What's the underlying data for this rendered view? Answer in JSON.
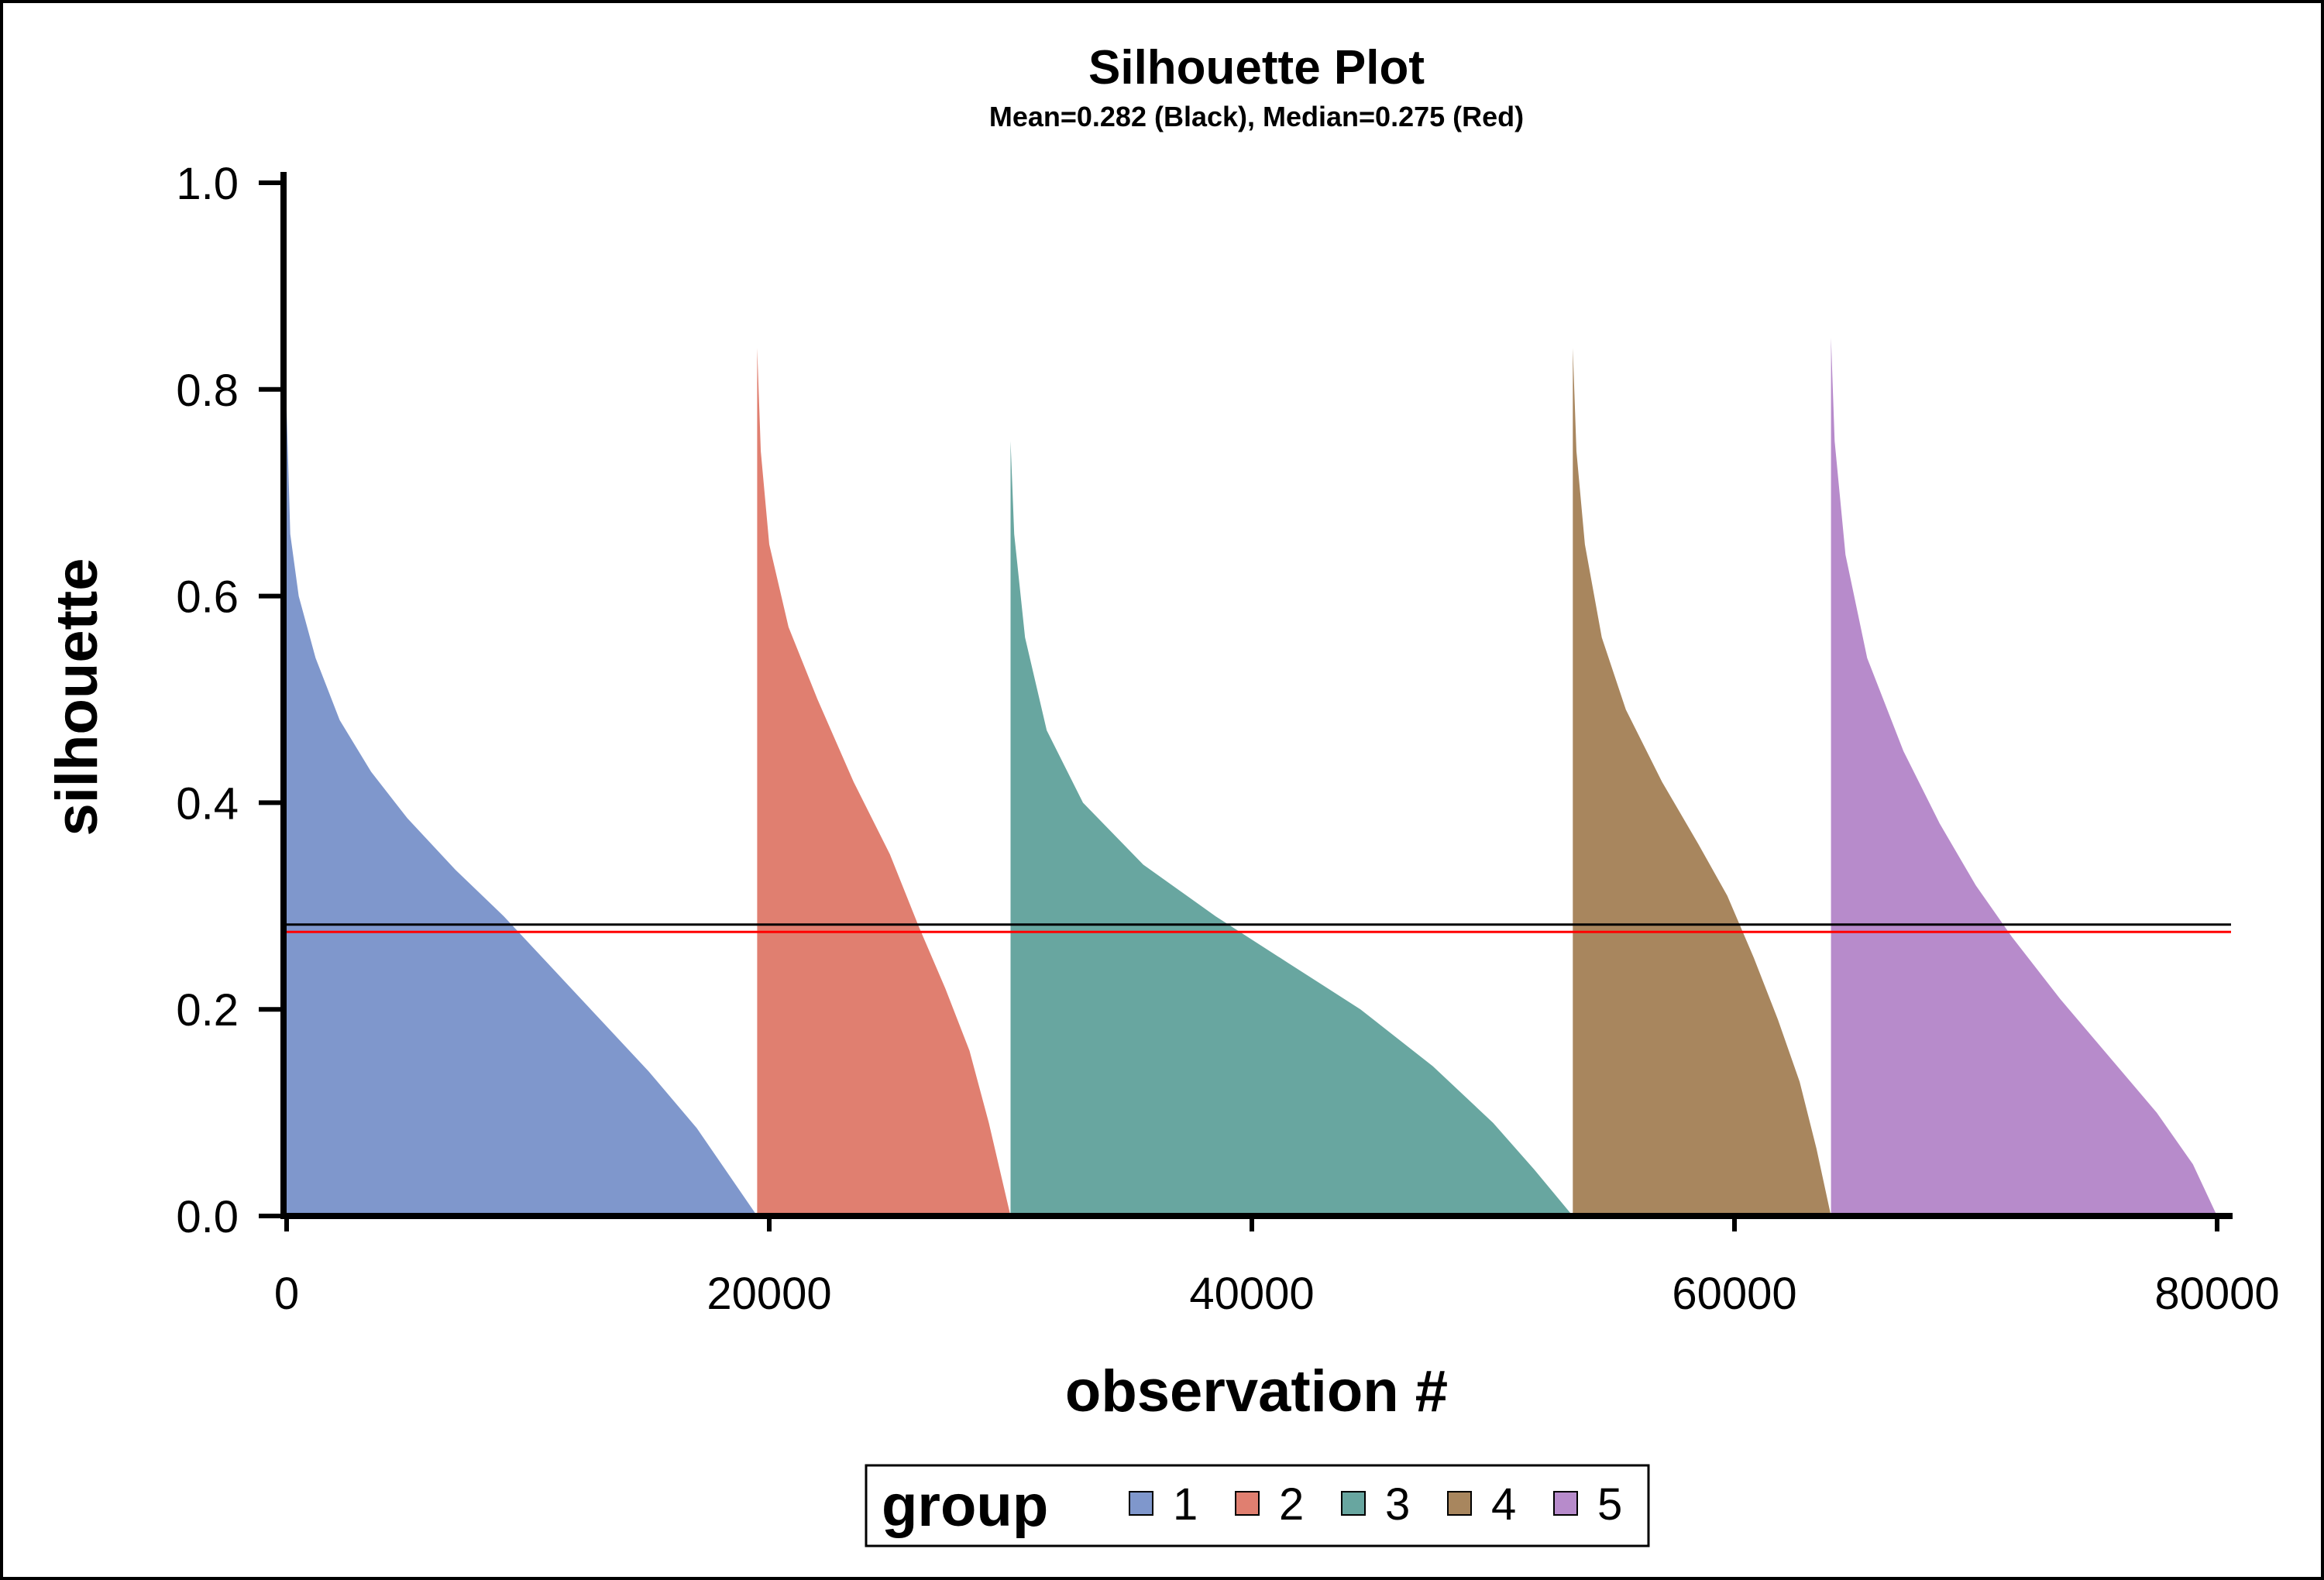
{
  "chart_data": {
    "type": "area",
    "title": "Silhouette Plot",
    "subtitle": "Mean=0.282 (Black), Median=0.275 (Red)",
    "xlabel": "observation #",
    "ylabel": "silhouette",
    "xlim": [
      0,
      80000
    ],
    "ylim": [
      0,
      1.0
    ],
    "x_ticks": [
      0,
      20000,
      40000,
      60000,
      80000
    ],
    "x_tick_labels": [
      "0",
      "20000",
      "40000",
      "60000",
      "80000"
    ],
    "y_ticks": [
      0.0,
      0.2,
      0.4,
      0.6,
      0.8,
      1.0
    ],
    "y_tick_labels": [
      "0.0",
      "0.2",
      "0.4",
      "0.6",
      "0.8",
      "1.0"
    ],
    "grid": false,
    "legend": {
      "title": "group",
      "placement": "bottom",
      "entries": [
        "1",
        "2",
        "3",
        "4",
        "5"
      ]
    },
    "reference_lines": [
      {
        "label": "Mean",
        "value": 0.282,
        "color": "#000000"
      },
      {
        "label": "Median",
        "value": 0.275,
        "color": "#ff0000"
      }
    ],
    "series": [
      {
        "name": "1",
        "color": "#7f97cc",
        "x_start": 0,
        "x_end": 19500,
        "points": [
          [
            0,
            0.78
          ],
          [
            150,
            0.66
          ],
          [
            500,
            0.6
          ],
          [
            1200,
            0.54
          ],
          [
            2200,
            0.48
          ],
          [
            3500,
            0.43
          ],
          [
            5000,
            0.385
          ],
          [
            7000,
            0.335
          ],
          [
            9000,
            0.29
          ],
          [
            11000,
            0.24
          ],
          [
            13000,
            0.19
          ],
          [
            15000,
            0.14
          ],
          [
            17000,
            0.085
          ],
          [
            19500,
            0.0
          ]
        ]
      },
      {
        "name": "2",
        "color": "#e07f70",
        "x_start": 19500,
        "x_end": 30000,
        "points": [
          [
            19500,
            0.84
          ],
          [
            19650,
            0.74
          ],
          [
            20000,
            0.65
          ],
          [
            20800,
            0.57
          ],
          [
            22000,
            0.5
          ],
          [
            23500,
            0.42
          ],
          [
            25000,
            0.35
          ],
          [
            26200,
            0.28
          ],
          [
            27300,
            0.22
          ],
          [
            28300,
            0.16
          ],
          [
            29100,
            0.09
          ],
          [
            30000,
            0.0
          ]
        ]
      },
      {
        "name": "3",
        "color": "#68a6a0",
        "x_start": 30000,
        "x_end": 53300,
        "points": [
          [
            30000,
            0.75
          ],
          [
            30150,
            0.66
          ],
          [
            30600,
            0.56
          ],
          [
            31500,
            0.47
          ],
          [
            33000,
            0.4
          ],
          [
            35500,
            0.34
          ],
          [
            38500,
            0.29
          ],
          [
            41500,
            0.245
          ],
          [
            44500,
            0.2
          ],
          [
            47500,
            0.145
          ],
          [
            50000,
            0.09
          ],
          [
            51700,
            0.045
          ],
          [
            53300,
            0.0
          ]
        ]
      },
      {
        "name": "4",
        "color": "#a8865e",
        "x_start": 53300,
        "x_end": 64000,
        "points": [
          [
            53300,
            0.84
          ],
          [
            53450,
            0.74
          ],
          [
            53800,
            0.65
          ],
          [
            54500,
            0.56
          ],
          [
            55500,
            0.49
          ],
          [
            57000,
            0.42
          ],
          [
            58500,
            0.36
          ],
          [
            59700,
            0.31
          ],
          [
            60800,
            0.25
          ],
          [
            61800,
            0.19
          ],
          [
            62700,
            0.13
          ],
          [
            63400,
            0.065
          ],
          [
            64000,
            0.0
          ]
        ]
      },
      {
        "name": "5",
        "color": "#b78bcb",
        "x_start": 64000,
        "x_end": 80000,
        "points": [
          [
            64000,
            0.85
          ],
          [
            64150,
            0.75
          ],
          [
            64600,
            0.64
          ],
          [
            65500,
            0.54
          ],
          [
            67000,
            0.45
          ],
          [
            68500,
            0.38
          ],
          [
            70000,
            0.32
          ],
          [
            71500,
            0.27
          ],
          [
            73500,
            0.21
          ],
          [
            75500,
            0.155
          ],
          [
            77500,
            0.1
          ],
          [
            79000,
            0.05
          ],
          [
            80000,
            0.0
          ]
        ]
      }
    ]
  }
}
